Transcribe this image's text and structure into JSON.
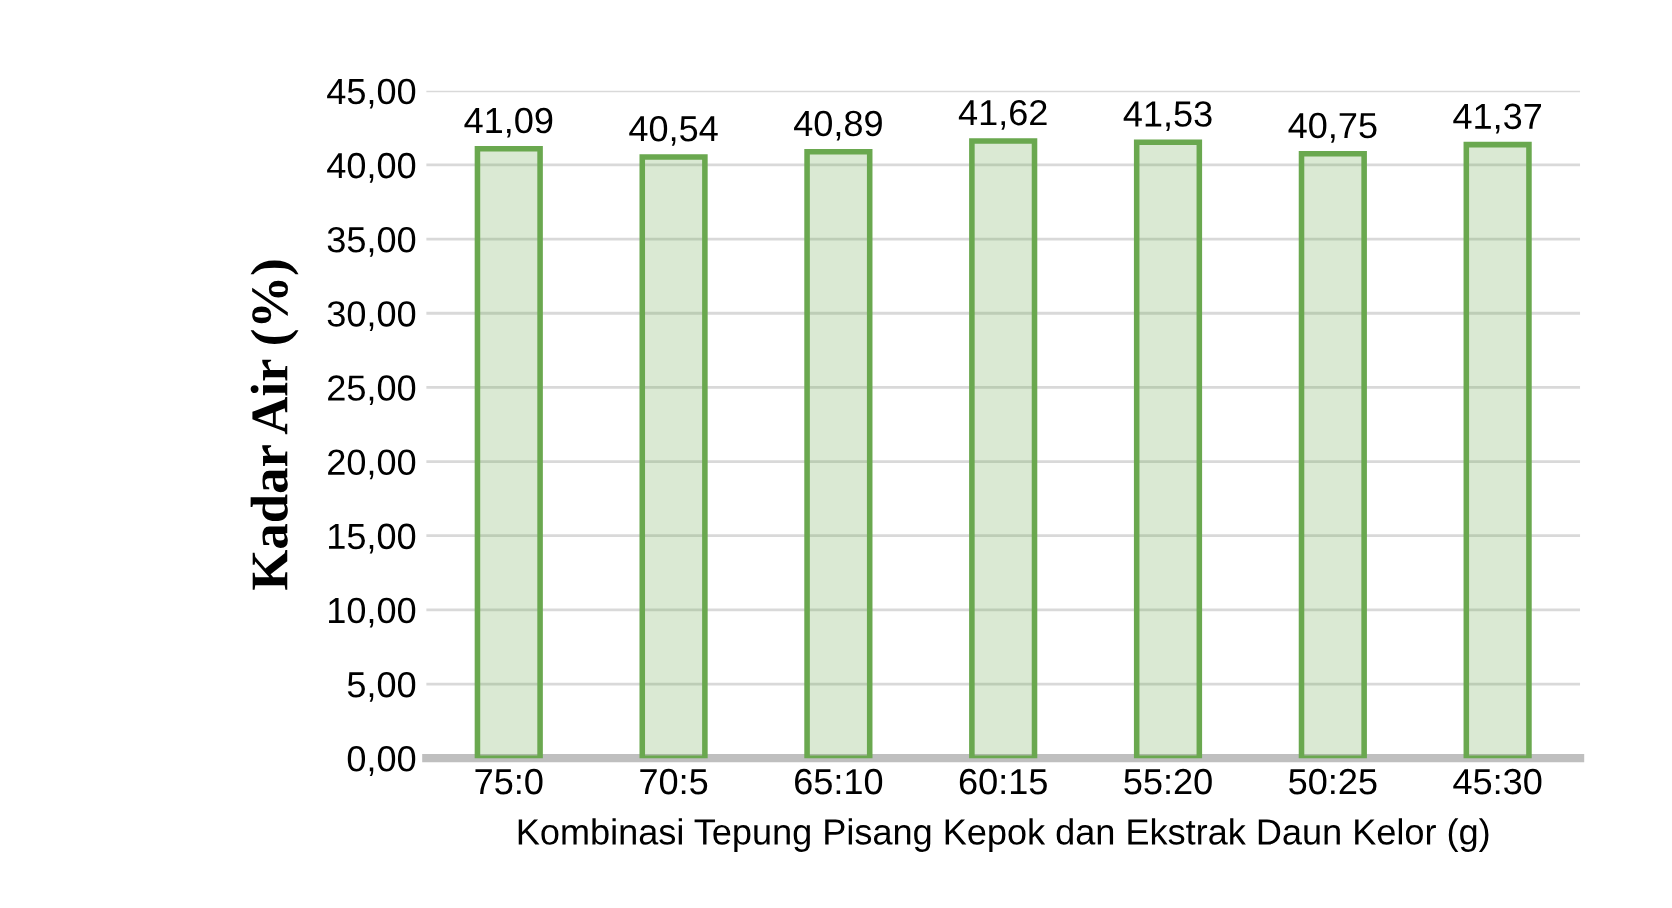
{
  "chart_data": {
    "type": "bar",
    "xlabel": "Kombinasi Tepung Pisang Kepok dan Ekstrak Daun Kelor (g)",
    "ylabel": "Kadar Air (%)",
    "categories": [
      "75:0",
      "70:5",
      "65:10",
      "60:15",
      "55:20",
      "50:25",
      "45:30"
    ],
    "series": [
      {
        "color": "#6aa84f",
        "values": [
          41.09,
          40.54,
          40.89,
          41.62,
          41.53,
          40.75,
          41.37
        ],
        "value_labels": [
          "41,09",
          "40,54",
          "40,89",
          "41,62",
          "41,53",
          "40,75",
          "41,37"
        ]
      }
    ],
    "ylim": [
      0,
      45
    ],
    "yticks": [
      {
        "value": 0,
        "label": "0,00"
      },
      {
        "value": 5,
        "label": "5,00"
      },
      {
        "value": 10,
        "label": "10,00"
      },
      {
        "value": 15,
        "label": "15,00"
      },
      {
        "value": 20,
        "label": "20,00"
      },
      {
        "value": 25,
        "label": "25,00"
      },
      {
        "value": 30,
        "label": "30,00"
      },
      {
        "value": 35,
        "label": "35,00"
      },
      {
        "value": 40,
        "label": "40,00"
      },
      {
        "value": 45,
        "label": "45,00"
      }
    ],
    "grid": "y"
  }
}
